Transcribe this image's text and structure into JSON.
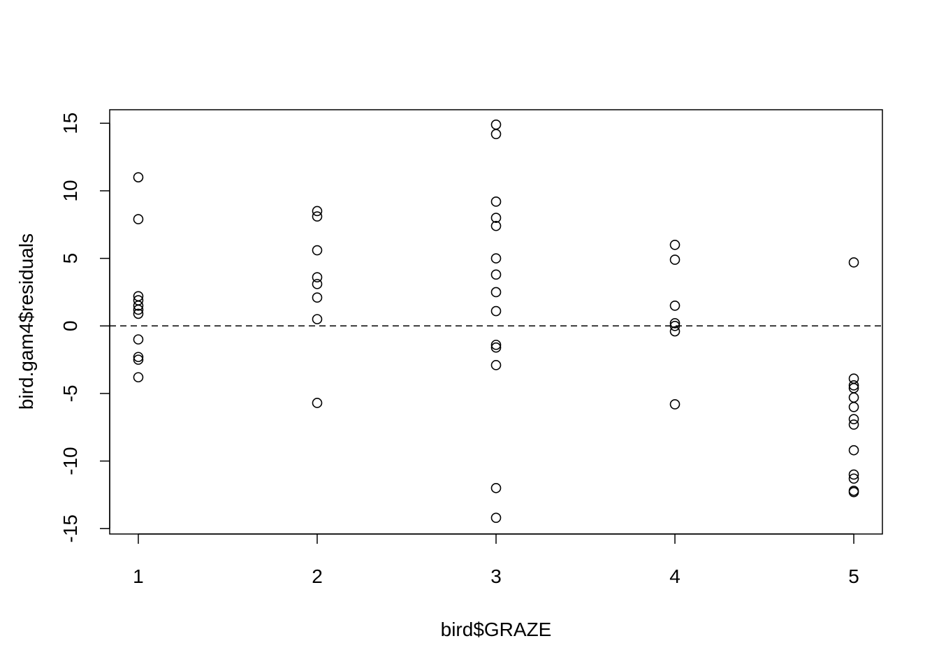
{
  "chart_data": {
    "type": "scatter",
    "title": "",
    "xlabel": "bird$GRAZE",
    "ylabel": "bird.gam4$residuals",
    "xlim": [
      0.84,
      5.16
    ],
    "ylim": [
      -15.4,
      16.0
    ],
    "x_ticks": [
      1,
      2,
      3,
      4,
      5
    ],
    "y_ticks": [
      -15,
      -10,
      -5,
      0,
      5,
      10,
      15
    ],
    "grid": false,
    "reference_line": {
      "y": 0,
      "style": "dashed"
    },
    "marker": "open-circle",
    "points": [
      {
        "x": 1,
        "y": 11.0
      },
      {
        "x": 1,
        "y": 7.9
      },
      {
        "x": 1,
        "y": 2.2
      },
      {
        "x": 1,
        "y": 1.9
      },
      {
        "x": 1,
        "y": 1.5
      },
      {
        "x": 1,
        "y": 1.2
      },
      {
        "x": 1,
        "y": 0.9
      },
      {
        "x": 1,
        "y": -1.0
      },
      {
        "x": 1,
        "y": -2.3
      },
      {
        "x": 1,
        "y": -2.5
      },
      {
        "x": 1,
        "y": -3.8
      },
      {
        "x": 2,
        "y": 8.5
      },
      {
        "x": 2,
        "y": 8.1
      },
      {
        "x": 2,
        "y": 5.6
      },
      {
        "x": 2,
        "y": 3.6
      },
      {
        "x": 2,
        "y": 3.1
      },
      {
        "x": 2,
        "y": 2.1
      },
      {
        "x": 2,
        "y": 0.5
      },
      {
        "x": 2,
        "y": -5.7
      },
      {
        "x": 3,
        "y": 14.9
      },
      {
        "x": 3,
        "y": 14.2
      },
      {
        "x": 3,
        "y": 9.2
      },
      {
        "x": 3,
        "y": 8.0
      },
      {
        "x": 3,
        "y": 7.4
      },
      {
        "x": 3,
        "y": 5.0
      },
      {
        "x": 3,
        "y": 3.8
      },
      {
        "x": 3,
        "y": 2.5
      },
      {
        "x": 3,
        "y": 1.1
      },
      {
        "x": 3,
        "y": -1.4
      },
      {
        "x": 3,
        "y": -1.6
      },
      {
        "x": 3,
        "y": -2.9
      },
      {
        "x": 3,
        "y": -12.0
      },
      {
        "x": 3,
        "y": -14.2
      },
      {
        "x": 4,
        "y": 6.0
      },
      {
        "x": 4,
        "y": 4.9
      },
      {
        "x": 4,
        "y": 1.5
      },
      {
        "x": 4,
        "y": 0.2
      },
      {
        "x": 4,
        "y": 0.0
      },
      {
        "x": 4,
        "y": -0.4
      },
      {
        "x": 4,
        "y": -5.8
      },
      {
        "x": 5,
        "y": 4.7
      },
      {
        "x": 5,
        "y": -3.9
      },
      {
        "x": 5,
        "y": -4.4
      },
      {
        "x": 5,
        "y": -4.6
      },
      {
        "x": 5,
        "y": -5.3
      },
      {
        "x": 5,
        "y": -6.0
      },
      {
        "x": 5,
        "y": -6.9
      },
      {
        "x": 5,
        "y": -7.3
      },
      {
        "x": 5,
        "y": -9.2
      },
      {
        "x": 5,
        "y": -11.0
      },
      {
        "x": 5,
        "y": -11.3
      },
      {
        "x": 5,
        "y": -12.2
      },
      {
        "x": 5,
        "y": -12.3
      }
    ]
  }
}
